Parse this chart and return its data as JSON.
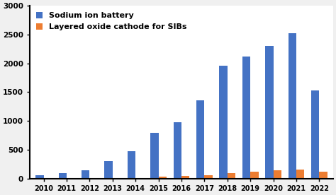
{
  "years": [
    2010,
    2011,
    2012,
    2013,
    2014,
    2015,
    2016,
    2017,
    2018,
    2019,
    2020,
    2021,
    2022
  ],
  "sodium_ion": [
    65,
    90,
    145,
    300,
    480,
    800,
    980,
    1360,
    1960,
    2120,
    2300,
    2520,
    1530
  ],
  "layered_oxide": [
    5,
    5,
    5,
    10,
    10,
    35,
    45,
    60,
    100,
    120,
    145,
    155,
    115
  ],
  "sodium_color": "#4472c4",
  "layered_color": "#ed7d31",
  "ylim": [
    0,
    3000
  ],
  "yticks": [
    0,
    500,
    1000,
    1500,
    2000,
    2500,
    3000
  ],
  "legend1": "Sodium ion battery",
  "legend2": "Layered oxide cathode for SIBs",
  "bar_width": 0.35,
  "background_color": "#f0f0f0",
  "plot_bg_color": "#ffffff",
  "edge_color": "none"
}
